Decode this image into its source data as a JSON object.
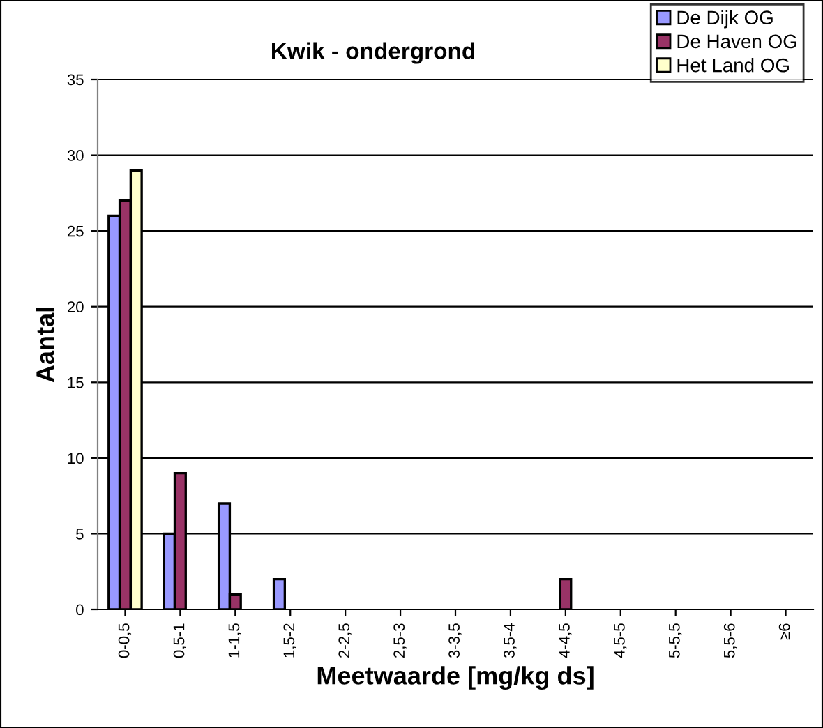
{
  "chart_data": {
    "type": "bar",
    "title": "Kwik - ondergrond",
    "xlabel": "Meetwaarde [mg/kg ds]",
    "ylabel": "Aantal",
    "categories": [
      "0-0,5",
      "0,5-1",
      "1-1,5",
      "1,5-2",
      "2-2,5",
      "2,5-3",
      "3-3,5",
      "3,5-4",
      "4-4,5",
      "4,5-5",
      "5-5,5",
      "5,5-6",
      "≥6"
    ],
    "series": [
      {
        "name": "De Dijk OG",
        "color": "#9999ff",
        "values": [
          26,
          5,
          7,
          2,
          0,
          0,
          0,
          0,
          0,
          0,
          0,
          0,
          0
        ]
      },
      {
        "name": "De Haven OG",
        "color": "#993366",
        "values": [
          27,
          9,
          1,
          0,
          0,
          0,
          0,
          0,
          2,
          0,
          0,
          0,
          0
        ]
      },
      {
        "name": "Het Land OG",
        "color": "#ffffcc",
        "values": [
          29,
          0,
          0,
          0,
          0,
          0,
          0,
          0,
          0,
          0,
          0,
          0,
          0
        ]
      }
    ],
    "ylim": [
      0,
      35
    ],
    "yticks": [
      0,
      5,
      10,
      15,
      20,
      25,
      30,
      35
    ],
    "grid": "y",
    "legend": "top right"
  }
}
